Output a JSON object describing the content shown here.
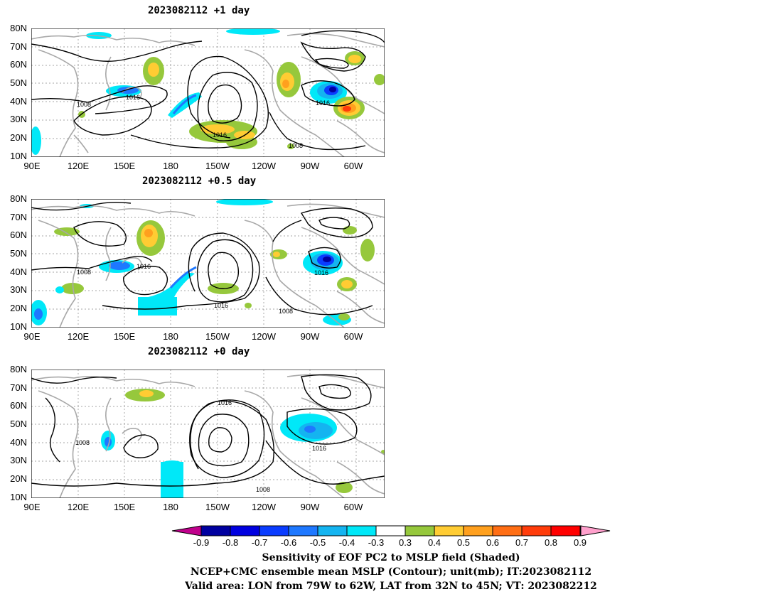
{
  "panels": [
    {
      "title": "2023082112 +1 day",
      "lat_labels": [
        "80N",
        "70N",
        "60N",
        "50N",
        "40N",
        "30N",
        "20N",
        "10N"
      ],
      "lon_labels": [
        "90E",
        "120E",
        "150E",
        "180",
        "150W",
        "120W",
        "90W",
        "60W"
      ]
    },
    {
      "title": "2023082112 +0.5 day",
      "lat_labels": [
        "80N",
        "70N",
        "60N",
        "50N",
        "40N",
        "30N",
        "20N",
        "10N"
      ],
      "lon_labels": [
        "90E",
        "120E",
        "150E",
        "180",
        "150W",
        "120W",
        "90W",
        "60W"
      ]
    },
    {
      "title": "2023082112 +0 day",
      "lat_labels": [
        "80N",
        "70N",
        "60N",
        "50N",
        "40N",
        "30N",
        "20N",
        "10N"
      ],
      "lon_labels": [
        "90E",
        "120E",
        "150E",
        "180",
        "150W",
        "120W",
        "90W",
        "60W"
      ]
    }
  ],
  "contour_labels": {
    "p1": [
      "1008",
      "1016",
      "1016",
      "1016",
      "1008"
    ],
    "p2": [
      "1008",
      "1016",
      "1016",
      "1016",
      "1008"
    ],
    "p3": [
      "1008",
      "1016",
      "1016",
      "1008"
    ]
  },
  "colorbar": {
    "labels": [
      "-0.9",
      "-0.8",
      "-0.7",
      "-0.6",
      "-0.5",
      "-0.4",
      "-0.3",
      "0.3",
      "0.4",
      "0.5",
      "0.6",
      "0.7",
      "0.8",
      "0.9"
    ],
    "colors": {
      "low_arrow": "#c0008c",
      "bins": [
        "#0000a0",
        "#0000e0",
        "#0a3cff",
        "#1e78ff",
        "#14b4f0",
        "#00e8f8",
        "#ffffff",
        "#96c83c",
        "#ffcc33",
        "#ffa01e",
        "#ff6e14",
        "#ff3c0a",
        "#ff0000"
      ],
      "high_arrow": "#ffa0cc"
    }
  },
  "caption": [
    "Sensitivity of EOF PC2 to MSLP field (Shaded)",
    "NCEP+CMC ensemble mean MSLP (Contour); unit(mb); IT:2023082112",
    "Valid area: LON from 79W to 62W, LAT from 32N to 45N; VT: 2023082212"
  ]
}
